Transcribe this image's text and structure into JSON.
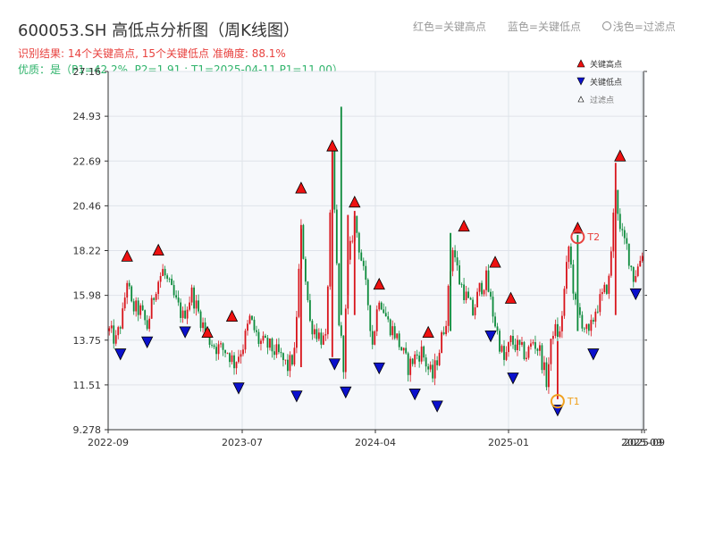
{
  "header": {
    "title": "600053.SH 高低点分析图（周K线图）",
    "result": "识别结果: 14个关键高点, 15个关键低点   准确度: 88.1%",
    "quality": "优质：是（P1=42.2%, P2=1.91 ; T1=2025-04-11 P1=11.00）"
  },
  "legend_top": {
    "red": "红色=关键高点",
    "blue": "蓝色=关键低点",
    "light": "浅色=过滤点"
  },
  "colors": {
    "up": "#d8141b",
    "down": "#0b8a3a",
    "high_marker": "#ee1111",
    "low_marker": "#0b11cc",
    "annotation": "#f0a01e",
    "t2": "#e8423f",
    "plot_bg": "#f6f8fb",
    "grid": "#dfe3ea"
  },
  "chart_data": {
    "type": "candlestick",
    "title": "600053.SH 高低点分析图（周K线图）",
    "ylim": [
      9.278,
      27.16
    ],
    "y_ticks": [
      "9.278",
      "11.51",
      "13.75",
      "15.98",
      "18.22",
      "20.46",
      "22.69",
      "24.93",
      "27.16"
    ],
    "x_ticks": [
      "2022-09",
      "2023-07",
      "2024-04",
      "2025-01",
      "2025-09",
      "2025-09"
    ],
    "grid": true,
    "legend": {
      "placement": "top-right",
      "entries": [
        "关键高点",
        "关键低点",
        "过滤点"
      ]
    },
    "price_walk_approx": [
      [
        0,
        14.2
      ],
      [
        3,
        13.7
      ],
      [
        6,
        15.0
      ],
      [
        8,
        16.8
      ],
      [
        10,
        15.4
      ],
      [
        14,
        15.2
      ],
      [
        17,
        14.4
      ],
      [
        21,
        16.5
      ],
      [
        24,
        17.2
      ],
      [
        30,
        15.6
      ],
      [
        33,
        14.9
      ],
      [
        37,
        16.1
      ],
      [
        40,
        15.1
      ],
      [
        44,
        13.9
      ],
      [
        48,
        13.4
      ],
      [
        53,
        13.2
      ],
      [
        56,
        12.6
      ],
      [
        60,
        13.5
      ],
      [
        63,
        14.8
      ],
      [
        67,
        13.7
      ],
      [
        72,
        13.4
      ],
      [
        76,
        13.0
      ],
      [
        80,
        12.4
      ],
      [
        83,
        13.0
      ],
      [
        86,
        19.2
      ],
      [
        90,
        14.6
      ],
      [
        94,
        14.0
      ],
      [
        97,
        13.6
      ],
      [
        100,
        22.8
      ],
      [
        103,
        14.7
      ],
      [
        105,
        12.6
      ],
      [
        107,
        17.5
      ],
      [
        110,
        19.8
      ],
      [
        113,
        17.8
      ],
      [
        116,
        15.6
      ],
      [
        118,
        13.6
      ],
      [
        121,
        16.0
      ],
      [
        125,
        14.6
      ],
      [
        128,
        14.1
      ],
      [
        131,
        13.3
      ],
      [
        134,
        12.4
      ],
      [
        137,
        12.9
      ],
      [
        140,
        13.2
      ],
      [
        143,
        12.3
      ],
      [
        145,
        11.9
      ],
      [
        148,
        13.3
      ],
      [
        151,
        14.9
      ],
      [
        154,
        18.5
      ],
      [
        157,
        16.7
      ],
      [
        160,
        15.9
      ],
      [
        163,
        15.1
      ],
      [
        166,
        16.3
      ],
      [
        169,
        16.8
      ],
      [
        172,
        15.1
      ],
      [
        175,
        13.6
      ],
      [
        177,
        12.7
      ],
      [
        180,
        13.7
      ],
      [
        184,
        13.3
      ],
      [
        187,
        13.0
      ],
      [
        190,
        13.7
      ],
      [
        193,
        13.2
      ],
      [
        196,
        11.7
      ],
      [
        199,
        14.3
      ],
      [
        202,
        14.0
      ],
      [
        206,
        18.4
      ],
      [
        209,
        15.4
      ],
      [
        212,
        14.7
      ],
      [
        215,
        13.9
      ],
      [
        218,
        15.3
      ],
      [
        221,
        15.9
      ],
      [
        224,
        16.7
      ],
      [
        227,
        21.5
      ],
      [
        229,
        19.1
      ],
      [
        232,
        18.4
      ],
      [
        235,
        16.9
      ],
      [
        237,
        17.4
      ],
      [
        239,
        18.2
      ]
    ],
    "key_highs": [
      {
        "i": 8,
        "y": 17.6
      },
      {
        "i": 22,
        "y": 17.9
      },
      {
        "i": 44,
        "y": 13.8
      },
      {
        "i": 55,
        "y": 14.6
      },
      {
        "i": 86,
        "y": 21.0
      },
      {
        "i": 100,
        "y": 23.1
      },
      {
        "i": 110,
        "y": 20.3
      },
      {
        "i": 121,
        "y": 16.2
      },
      {
        "i": 143,
        "y": 13.8
      },
      {
        "i": 159,
        "y": 19.1
      },
      {
        "i": 173,
        "y": 17.3
      },
      {
        "i": 180,
        "y": 15.5
      },
      {
        "i": 210,
        "y": 19.0
      },
      {
        "i": 229,
        "y": 22.6
      }
    ],
    "key_lows": [
      {
        "i": 5,
        "y": 13.4
      },
      {
        "i": 17,
        "y": 14.0
      },
      {
        "i": 34,
        "y": 14.5
      },
      {
        "i": 58,
        "y": 11.7
      },
      {
        "i": 84,
        "y": 11.3
      },
      {
        "i": 101,
        "y": 12.9
      },
      {
        "i": 106,
        "y": 11.5
      },
      {
        "i": 121,
        "y": 12.7
      },
      {
        "i": 137,
        "y": 11.4
      },
      {
        "i": 147,
        "y": 10.8
      },
      {
        "i": 171,
        "y": 14.3
      },
      {
        "i": 181,
        "y": 12.2
      },
      {
        "i": 201,
        "y": 10.6
      },
      {
        "i": 217,
        "y": 13.4
      },
      {
        "i": 236,
        "y": 16.4
      }
    ],
    "annotations": [
      {
        "label": "T1",
        "i": 201,
        "y": 10.7
      },
      {
        "label": "T2",
        "i": 210,
        "y": 18.9
      }
    ]
  }
}
